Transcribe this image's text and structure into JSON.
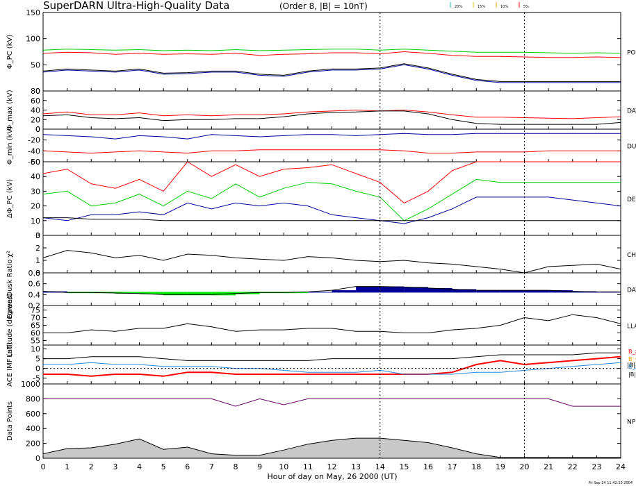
{
  "header": {
    "title": "SuperDARN Ultra-High-Quality Data",
    "subtitle": "(Order 8, |B| = 10nT)",
    "legend": [
      {
        "label": "20%",
        "color": "#22b5b5"
      },
      {
        "label": "15%",
        "color": "#c8c800"
      },
      {
        "label": "10%",
        "color": "#e0a000"
      },
      {
        "label": "5%",
        "color": "#ff0000"
      }
    ]
  },
  "xaxis": {
    "label": "Hour of day on May, 26 2000 (UT)",
    "ticks": [
      "0",
      "1",
      "2",
      "3",
      "4",
      "5",
      "6",
      "7",
      "8",
      "9",
      "10",
      "11",
      "12",
      "13",
      "14",
      "15",
      "16",
      "17",
      "18",
      "19",
      "20",
      "21",
      "22",
      "23",
      "24"
    ],
    "range": [
      0,
      24
    ],
    "markers_hours": [
      14,
      20
    ]
  },
  "footer_stamp": "Fri Sep 24 11:42:10 2004",
  "panels": [
    {
      "ylabel": "Φ_PC (kV)",
      "ticks": [
        "150",
        "100",
        "50",
        "0"
      ],
      "range": [
        0,
        150
      ],
      "side_label": "PO"
    },
    {
      "ylabel": "Φ_max (kV)",
      "ticks": [
        "80",
        "60",
        "40",
        "20",
        "0"
      ],
      "range": [
        0,
        80
      ],
      "side_label": "DAY"
    },
    {
      "ylabel": "Φ_min (kV)",
      "ticks": [
        "0",
        "-20",
        "-40",
        "-60"
      ],
      "range": [
        -60,
        0
      ],
      "side_label": "DU"
    },
    {
      "ylabel": "ΔΦ_PC (kV)",
      "ticks": [
        "50",
        "40",
        "30",
        "20",
        "10",
        "0"
      ],
      "range": [
        0,
        50
      ],
      "side_label": "DE"
    },
    {
      "ylabel": "χ²",
      "ticks": [
        "3",
        "2",
        "1",
        "0"
      ],
      "range": [
        0,
        3
      ],
      "side_label": "CH"
    },
    {
      "ylabel": "Dawn/Dusk Ratio",
      "ticks": [
        "0.8",
        "0.6",
        "0.4",
        "0.2"
      ],
      "range": [
        0.2,
        0.8
      ],
      "side_label": "DAY"
    },
    {
      "ylabel": "Latitude (degrees)",
      "ticks": [
        "75",
        "70",
        "65",
        "60",
        "55"
      ],
      "range": [
        52,
        78
      ],
      "side_label": "LLA"
    },
    {
      "ylabel": "ACE IMF (nT)",
      "ticks": [
        "10",
        "5",
        "0",
        "-5"
      ],
      "range": [
        -8,
        12
      ],
      "side_label": "|B|"
    },
    {
      "ylabel": "Data Points",
      "ticks": [
        "1000",
        "800",
        "600",
        "400",
        "200",
        "0"
      ],
      "range": [
        0,
        1000
      ],
      "side_label": "NP"
    }
  ],
  "imf_legend": [
    {
      "label": "B_z",
      "color": "#ff0000"
    },
    {
      "label": "B_y",
      "color": "#e0a000"
    },
    {
      "label": "B_x",
      "color": "#2288dd"
    },
    {
      "label": "|B|",
      "color": "#000000"
    }
  ],
  "colors": {
    "red": "#ff0000",
    "green": "#00cc00",
    "orange": "#e0a000",
    "blue": "#000099",
    "black": "#000000",
    "purple": "#660066",
    "bright_green": "#00ee00",
    "cyan": "#2288dd"
  },
  "chart_data": {
    "type": "line",
    "title": "SuperDARN Ultra-High-Quality Data",
    "xlabel": "Hour of day on May, 26 2000 (UT)",
    "xlim": [
      0,
      24
    ],
    "hours": [
      0,
      1,
      2,
      3,
      4,
      5,
      6,
      7,
      8,
      9,
      10,
      11,
      12,
      13,
      14,
      15,
      16,
      17,
      18,
      19,
      20,
      21,
      22,
      23,
      24
    ],
    "series": [
      {
        "panel": 0,
        "color": "red",
        "values": [
          72,
          74,
          73,
          70,
          72,
          70,
          71,
          70,
          72,
          68,
          70,
          71,
          73,
          73,
          71,
          75,
          72,
          68,
          66,
          66,
          65,
          64,
          64,
          65,
          64
        ]
      },
      {
        "panel": 0,
        "color": "green",
        "values": [
          78,
          80,
          79,
          78,
          79,
          77,
          78,
          77,
          79,
          77,
          78,
          79,
          80,
          80,
          78,
          80,
          78,
          76,
          74,
          74,
          74,
          73,
          72,
          73,
          72
        ]
      },
      {
        "panel": 0,
        "color": "black",
        "values": [
          38,
          42,
          40,
          38,
          42,
          34,
          35,
          38,
          38,
          32,
          30,
          38,
          42,
          42,
          44,
          52,
          44,
          32,
          22,
          18,
          18,
          18,
          18,
          18,
          18
        ]
      },
      {
        "panel": 0,
        "color": "blue",
        "values": [
          36,
          40,
          38,
          36,
          40,
          32,
          33,
          36,
          36,
          30,
          28,
          36,
          40,
          40,
          42,
          50,
          42,
          30,
          20,
          16,
          16,
          16,
          16,
          16,
          16
        ]
      },
      {
        "panel": 1,
        "color": "red",
        "values": [
          32,
          36,
          30,
          30,
          34,
          28,
          30,
          28,
          30,
          30,
          32,
          36,
          38,
          40,
          38,
          40,
          36,
          30,
          25,
          25,
          24,
          23,
          22,
          24,
          26
        ]
      },
      {
        "panel": 1,
        "color": "black",
        "values": [
          28,
          30,
          24,
          22,
          24,
          18,
          20,
          20,
          22,
          22,
          26,
          32,
          35,
          36,
          38,
          38,
          32,
          20,
          12,
          10,
          10,
          10,
          10,
          10,
          14
        ]
      },
      {
        "panel": 2,
        "color": "blue",
        "values": [
          -10,
          -12,
          -14,
          -18,
          -12,
          -14,
          -18,
          -10,
          -12,
          -14,
          -12,
          -10,
          -10,
          -12,
          -10,
          -8,
          -10,
          -10,
          -8,
          -8,
          -8,
          -8,
          -8,
          -8,
          -8
        ]
      },
      {
        "panel": 2,
        "color": "red",
        "values": [
          -40,
          -42,
          -44,
          -42,
          -40,
          -42,
          -44,
          -40,
          -40,
          -38,
          -38,
          -38,
          -38,
          -38,
          -38,
          -40,
          -44,
          -44,
          -42,
          -42,
          -42,
          -40,
          -40,
          -40,
          -40
        ]
      },
      {
        "panel": 3,
        "color": "red",
        "values": [
          42,
          45,
          35,
          32,
          38,
          30,
          50,
          40,
          48,
          40,
          45,
          46,
          48,
          42,
          36,
          22,
          30,
          44,
          50,
          50,
          50,
          50,
          50,
          50,
          50
        ]
      },
      {
        "panel": 3,
        "color": "green",
        "values": [
          28,
          30,
          20,
          22,
          28,
          20,
          30,
          25,
          35,
          26,
          32,
          36,
          35,
          30,
          26,
          10,
          18,
          28,
          38,
          36,
          36,
          36,
          36,
          36,
          36
        ]
      },
      {
        "panel": 3,
        "color": "blue",
        "values": [
          12,
          10,
          14,
          14,
          16,
          14,
          22,
          18,
          22,
          20,
          22,
          20,
          14,
          12,
          10,
          8,
          12,
          18,
          26,
          26,
          26,
          26,
          24,
          22,
          20
        ]
      },
      {
        "panel": 3,
        "color": "black",
        "values": [
          12,
          12,
          11,
          11,
          11,
          10,
          10,
          10,
          10,
          10,
          10,
          10,
          10,
          10,
          10,
          10,
          10,
          10,
          10,
          10,
          10,
          10,
          10,
          10,
          10
        ]
      },
      {
        "panel": 4,
        "color": "black",
        "values": [
          1.2,
          1.8,
          1.6,
          1.2,
          1.4,
          1.0,
          1.5,
          1.4,
          1.2,
          1.1,
          1.0,
          1.3,
          1.2,
          1.0,
          0.9,
          1.0,
          0.8,
          0.7,
          0.5,
          0.3,
          0.0,
          0.5,
          0.6,
          0.7,
          0.3
        ]
      },
      {
        "panel": 5,
        "color": "black",
        "values": [
          0.46,
          0.44,
          0.44,
          0.43,
          0.42,
          0.4,
          0.4,
          0.4,
          0.42,
          0.44,
          0.44,
          0.45,
          0.48,
          0.55,
          0.55,
          0.54,
          0.52,
          0.5,
          0.48,
          0.48,
          0.48,
          0.48,
          0.46,
          0.45,
          0.45
        ]
      },
      {
        "panel": 6,
        "color": "black",
        "values": [
          60,
          60,
          62,
          61,
          63,
          63,
          66,
          64,
          61,
          62,
          62,
          63,
          63,
          61,
          61,
          60,
          60,
          62,
          63,
          65,
          70,
          68,
          72,
          70,
          66
        ]
      },
      {
        "panel": 7,
        "color": "black",
        "values": [
          5,
          5,
          6,
          6,
          6,
          5,
          4,
          4,
          4,
          4,
          4,
          4,
          5,
          5,
          5,
          5,
          5,
          5,
          6,
          7,
          7,
          7,
          7,
          8,
          8
        ]
      },
      {
        "panel": 7,
        "color": "red",
        "values": [
          -3,
          -3,
          -4,
          -3,
          -3,
          -4,
          -2,
          -2,
          -3,
          -3,
          -3,
          -3,
          -3,
          -3,
          -3,
          -3,
          -3,
          -2,
          2,
          4,
          2,
          3,
          4,
          5,
          6
        ]
      },
      {
        "panel": 7,
        "color": "cyan",
        "values": [
          2,
          2,
          3,
          2,
          2,
          1,
          1,
          1,
          0,
          0,
          -1,
          -2,
          -2,
          -2,
          -1,
          -3,
          -3,
          -3,
          -2,
          -2,
          -1,
          0,
          1,
          2,
          3
        ]
      },
      {
        "panel": 8,
        "color": "purple",
        "values": [
          800,
          800,
          800,
          800,
          800,
          800,
          800,
          800,
          700,
          800,
          720,
          800,
          800,
          800,
          800,
          800,
          800,
          800,
          800,
          800,
          800,
          800,
          700,
          700,
          700
        ]
      },
      {
        "panel": 8,
        "color": "black",
        "values": [
          60,
          130,
          140,
          190,
          260,
          120,
          150,
          60,
          40,
          40,
          110,
          190,
          240,
          270,
          270,
          240,
          210,
          140,
          60,
          10,
          10,
          10,
          10,
          10,
          10
        ]
      }
    ]
  }
}
